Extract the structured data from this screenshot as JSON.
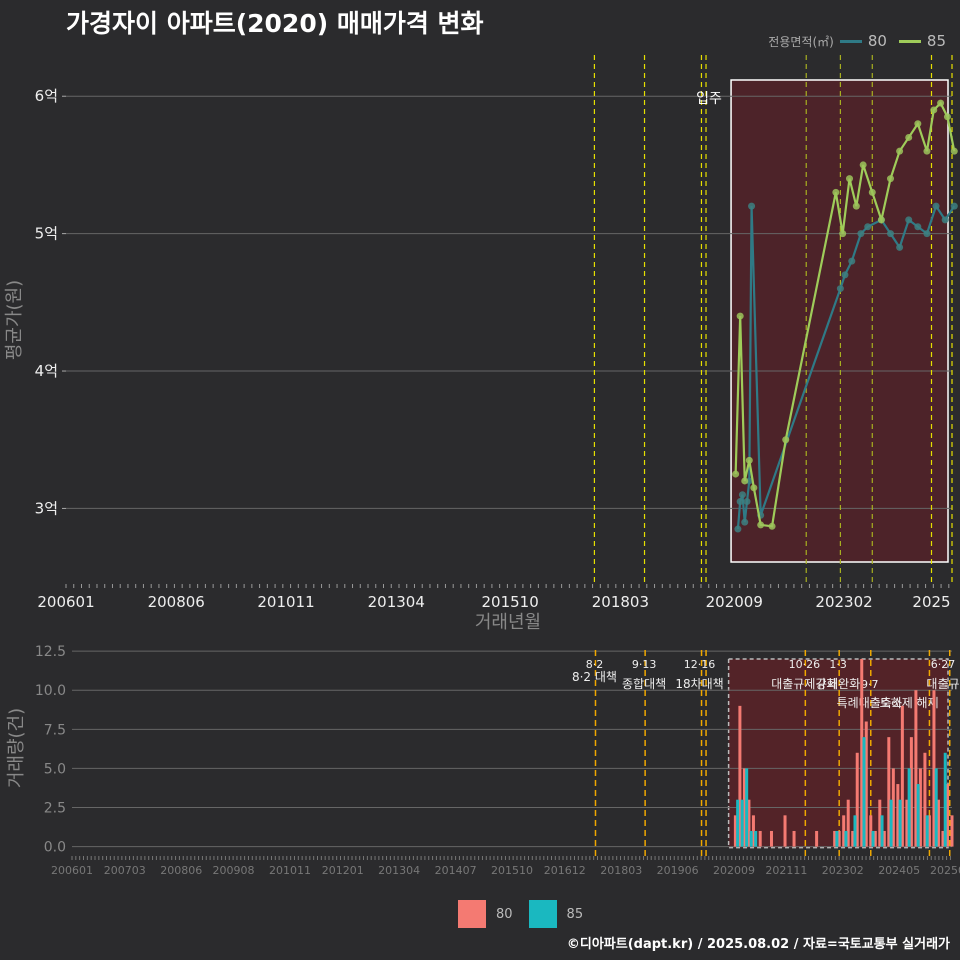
{
  "title": "가경자이 아파트(2020) 매매가격 변화",
  "legend_title": "전용면적(㎡)",
  "footer": "©디아파트(dapt.kr) / 2025.08.02 / 자료=국토교통부 실거래가",
  "colors": {
    "s80_line": "#2f7a86",
    "s85_line": "#9fcc5a",
    "s80_bar": "#f47a72",
    "s85_bar": "#1ab8c0",
    "shade": "#5a2228",
    "vline": "#e6e000",
    "vline2": "#f0a800"
  },
  "chart_data": [
    {
      "type": "line",
      "title": "",
      "xlabel": "거래년월",
      "ylabel": "평균가(원)",
      "xticks": [
        "200601",
        "200806",
        "201011",
        "201304",
        "201510",
        "201803",
        "202009",
        "202302",
        "2025"
      ],
      "yticks": [
        "3억",
        "4억",
        "5억",
        "6억"
      ],
      "ylim": [
        2.45,
        6.3
      ],
      "annotation": "입주",
      "series": [
        {
          "name": "80",
          "x": [
            2020.75,
            2020.8,
            2020.85,
            2020.9,
            2020.95,
            2021.0,
            2021.05,
            2021.25,
            2023.0,
            2023.1,
            2023.25,
            2023.45,
            2023.6,
            2023.9,
            2024.1,
            2024.3,
            2024.5,
            2024.7,
            2024.9,
            2025.1,
            2025.3,
            2025.5
          ],
          "y": [
            2.85,
            3.05,
            3.1,
            2.9,
            3.05,
            3.2,
            5.2,
            2.95,
            4.6,
            4.7,
            4.8,
            5.0,
            5.05,
            5.1,
            5.0,
            4.9,
            5.1,
            5.05,
            5.0,
            5.2,
            5.1,
            5.2
          ]
        },
        {
          "name": "85",
          "x": [
            2020.7,
            2020.8,
            2020.9,
            2021.0,
            2021.1,
            2021.25,
            2021.5,
            2021.8,
            2022.9,
            2023.05,
            2023.2,
            2023.35,
            2023.5,
            2023.7,
            2023.9,
            2024.1,
            2024.3,
            2024.5,
            2024.7,
            2024.9,
            2025.05,
            2025.2,
            2025.35,
            2025.5
          ],
          "y": [
            3.25,
            4.4,
            3.2,
            3.35,
            3.15,
            2.88,
            2.87,
            3.5,
            5.3,
            5.0,
            5.4,
            5.2,
            5.5,
            5.3,
            5.1,
            5.4,
            5.6,
            5.7,
            5.8,
            5.6,
            5.9,
            5.95,
            5.85,
            5.6
          ]
        }
      ],
      "vlines": [
        2017.6,
        2018.7,
        2019.95,
        2020.05,
        2022.25,
        2023.0,
        2023.7,
        2025.0,
        2025.45
      ]
    },
    {
      "type": "bar",
      "xlabel": "",
      "ylabel": "거래량(건)",
      "xticks": [
        "200601",
        "200703",
        "200806",
        "200908",
        "201011",
        "201201",
        "201304",
        "201407",
        "201510",
        "201612",
        "201803",
        "201906",
        "202009",
        "202111",
        "202302",
        "202405",
        "20250"
      ],
      "yticks": [
        "0.0",
        "2.5",
        "5.0",
        "7.5",
        "10.0",
        "12.5"
      ],
      "ylim": [
        -0.6,
        12.7
      ],
      "vlines": [
        2017.6,
        2018.7,
        2019.95,
        2020.05,
        2022.25,
        2023.0,
        2023.7,
        2025.0,
        2025.45
      ],
      "events": [
        {
          "date": "8·2",
          "label": "8·2 대책"
        },
        {
          "date": "9·13",
          "label": "종합대책"
        },
        {
          "date": "12·16",
          "label": "18차대책"
        },
        {
          "date": "10·26",
          "label": "대출규제강화"
        },
        {
          "date": "1·3",
          "label": "규제완화"
        },
        {
          "date": "9·7",
          "label": "특례대출축소"
        },
        {
          "date": "",
          "label": "토허제 해제"
        },
        {
          "date": "6·27",
          "label": "대출규"
        }
      ],
      "series": [
        {
          "name": "80",
          "x": [
            2020.7,
            2020.8,
            2020.9,
            2021.0,
            2021.1,
            2021.25,
            2021.5,
            2021.8,
            2022.0,
            2022.5,
            2022.9,
            2023.0,
            2023.1,
            2023.2,
            2023.3,
            2023.4,
            2023.5,
            2023.6,
            2023.7,
            2023.8,
            2023.9,
            2024.0,
            2024.1,
            2024.2,
            2024.3,
            2024.4,
            2024.5,
            2024.6,
            2024.7,
            2024.8,
            2024.9,
            2025.0,
            2025.1,
            2025.2,
            2025.3,
            2025.4,
            2025.5
          ],
          "y": [
            2,
            9,
            5,
            3,
            2,
            1,
            1,
            2,
            1,
            1,
            1,
            1,
            2,
            3,
            1,
            6,
            12,
            8,
            2,
            1,
            3,
            1,
            7,
            5,
            4,
            9,
            3,
            7,
            10,
            5,
            6,
            2,
            10,
            3,
            1,
            4,
            2
          ]
        },
        {
          "name": "85",
          "x": [
            2020.75,
            2020.85,
            2020.95,
            2021.05,
            2021.15,
            2022.95,
            2023.15,
            2023.35,
            2023.55,
            2023.75,
            2023.95,
            2024.15,
            2024.35,
            2024.55,
            2024.75,
            2024.95,
            2025.15,
            2025.35
          ],
          "y": [
            3,
            3,
            5,
            1,
            1,
            1,
            1,
            2,
            7,
            1,
            2,
            3,
            3,
            5,
            4,
            2,
            5,
            6
          ]
        }
      ]
    }
  ]
}
